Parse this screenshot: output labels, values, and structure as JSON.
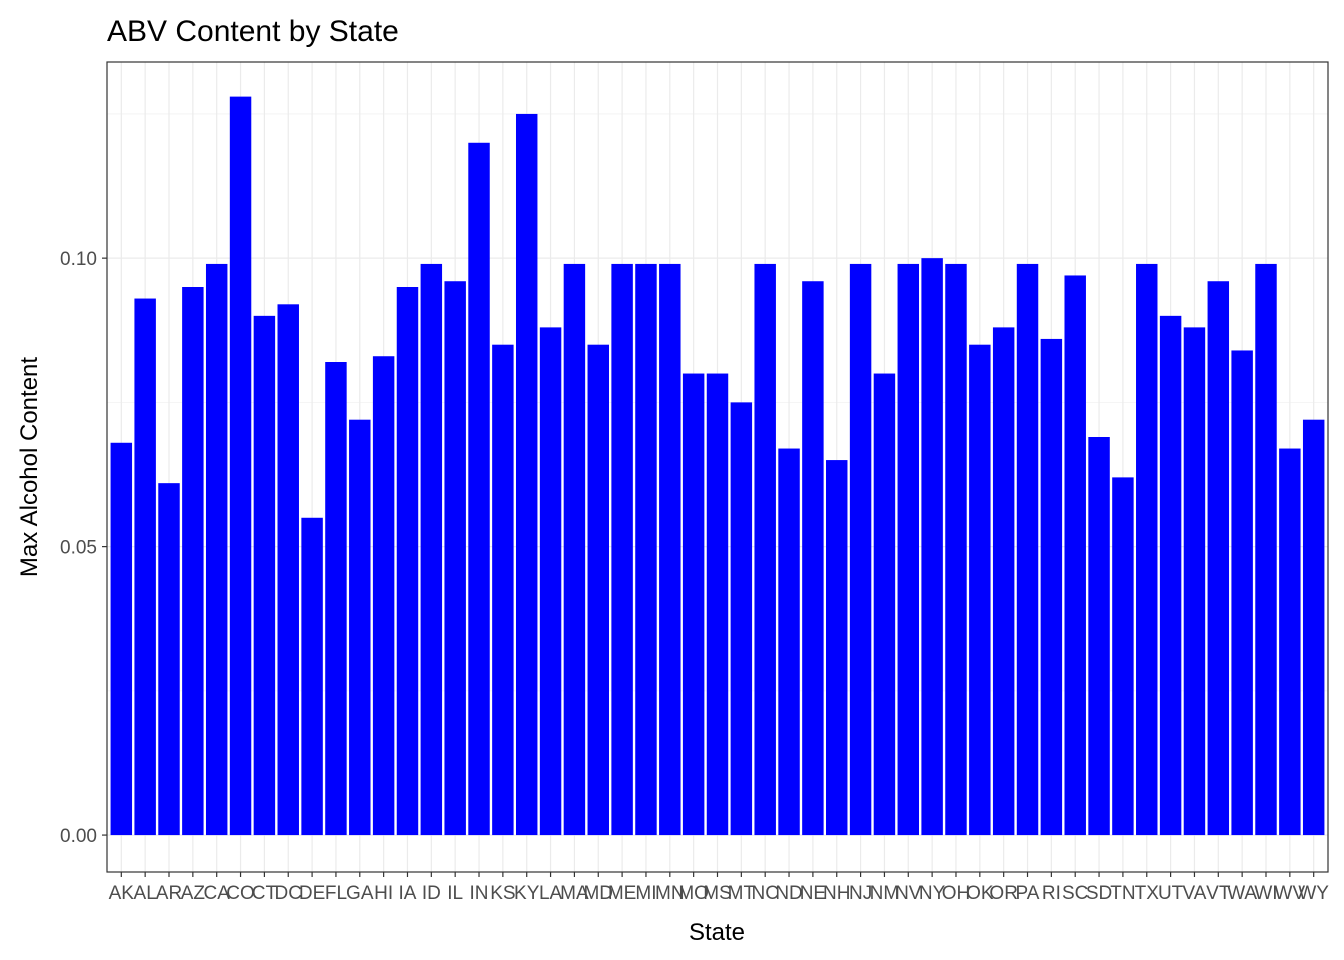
{
  "chart_data": {
    "type": "bar",
    "title": "ABV Content by State",
    "xlabel": "State",
    "ylabel": "Max Alcohol Content",
    "categories": [
      "AK",
      "AL",
      "AR",
      "AZ",
      "CA",
      "CO",
      "CT",
      "DC",
      "DE",
      "FL",
      "GA",
      "HI",
      "IA",
      "ID",
      "IL",
      "IN",
      "KS",
      "KY",
      "LA",
      "MA",
      "MD",
      "ME",
      "MI",
      "MN",
      "MO",
      "MS",
      "MT",
      "NC",
      "ND",
      "NE",
      "NH",
      "NJ",
      "NM",
      "NV",
      "NY",
      "OH",
      "OK",
      "OR",
      "PA",
      "RI",
      "SC",
      "SD",
      "TN",
      "TX",
      "UT",
      "VA",
      "VT",
      "WA",
      "WI",
      "WV",
      "WY"
    ],
    "values": [
      0.068,
      0.093,
      0.061,
      0.095,
      0.099,
      0.128,
      0.09,
      0.092,
      0.055,
      0.082,
      0.072,
      0.083,
      0.095,
      0.099,
      0.096,
      0.12,
      0.085,
      0.125,
      0.088,
      0.099,
      0.085,
      0.099,
      0.099,
      0.099,
      0.08,
      0.08,
      0.075,
      0.099,
      0.067,
      0.096,
      0.065,
      0.099,
      0.08,
      0.099,
      0.1,
      0.099,
      0.085,
      0.088,
      0.099,
      0.086,
      0.097,
      0.069,
      0.062,
      0.099,
      0.09,
      0.088,
      0.096,
      0.084,
      0.099,
      0.067,
      0.072
    ],
    "ylim": [
      -0.0064,
      0.134
    ],
    "yticks": [
      0.0,
      0.05,
      0.1
    ],
    "ytick_labels": [
      "0.00",
      "0.05",
      "0.10"
    ],
    "grid": true,
    "bar_color": "#0000FF"
  }
}
